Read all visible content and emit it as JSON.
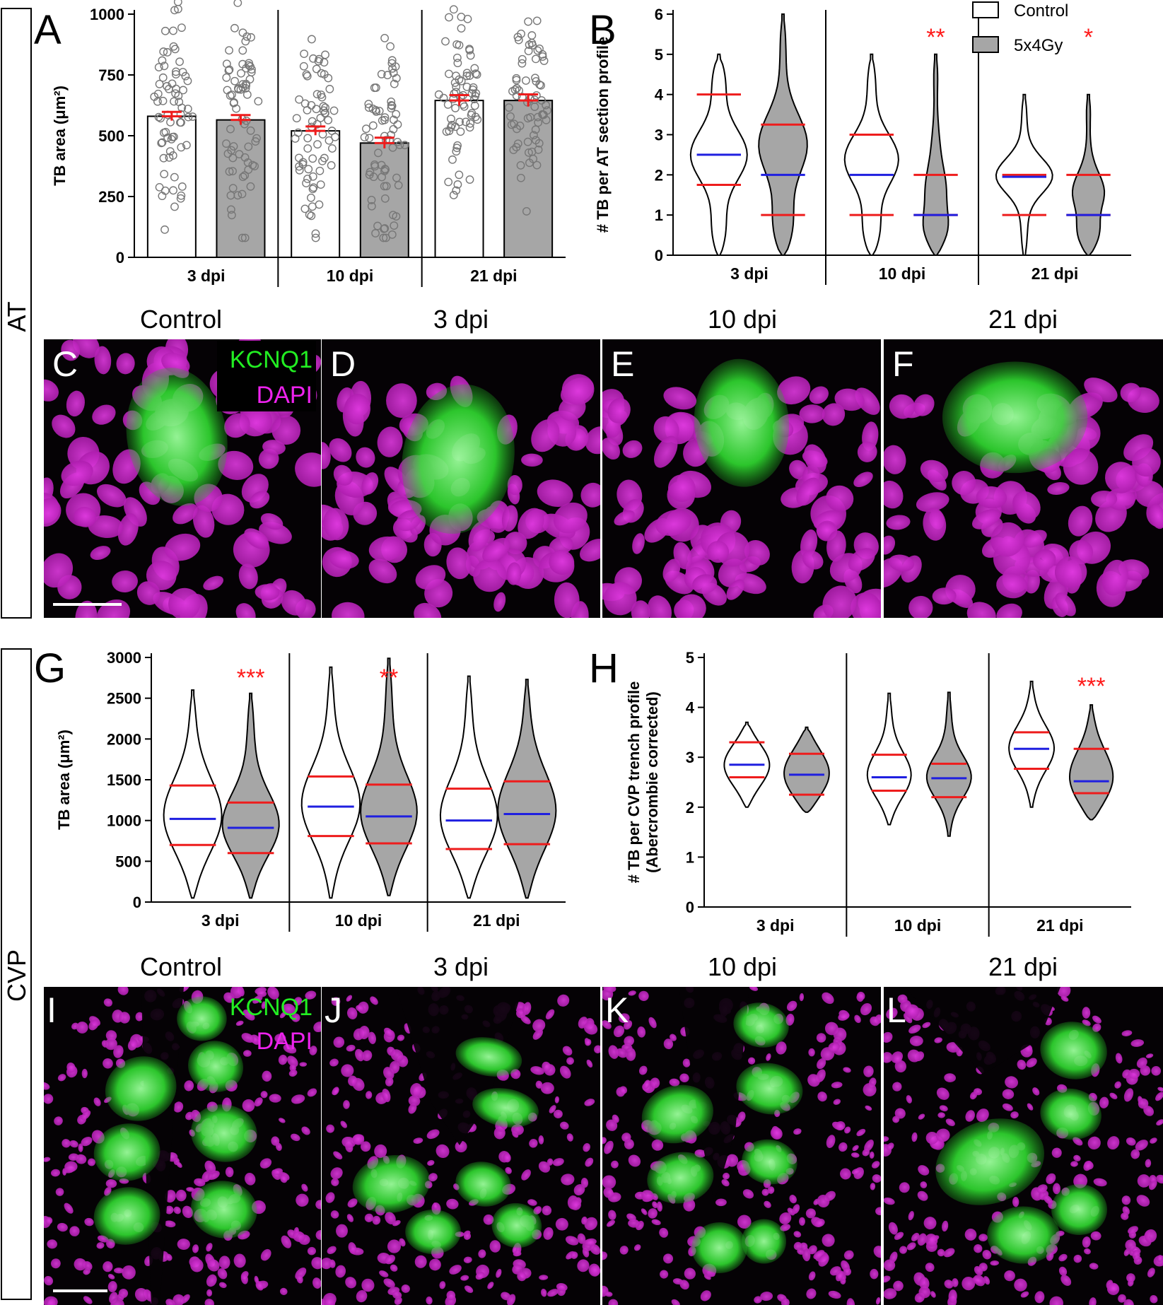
{
  "side_labels": {
    "top": "AT",
    "bottom": "CVP"
  },
  "colors": {
    "control": "#ffffff",
    "irradiated": "#a6a6a6",
    "median": "#1f1fe0",
    "quartile": "#ee1c1c",
    "sig": "#ff1a1a",
    "kcnq1": "#22ee22",
    "dapi": "#ee22ee"
  },
  "legend": {
    "control": "Control",
    "irradiated": "5x4Gy"
  },
  "groups": [
    "3 dpi",
    "10 dpi",
    "21 dpi"
  ],
  "micro_titles": [
    "Control",
    "3 dpi",
    "10 dpi",
    "21 dpi"
  ],
  "micro_at": {
    "letters": [
      "C",
      "D",
      "E",
      "F"
    ],
    "stain1": "KCNQ1",
    "stain2": "DAPI"
  },
  "micro_cvp": {
    "letters": [
      "I",
      "J",
      "K",
      "L"
    ],
    "stain1": "KCNQ1",
    "stain2": "DAPI"
  },
  "chart_data": [
    {
      "panel": "A",
      "type": "bar",
      "ylabel": "TB area (μm²)",
      "ylim": [
        0,
        1000
      ],
      "yticks": [
        0,
        250,
        500,
        750,
        1000
      ],
      "categories": [
        "3 dpi",
        "10 dpi",
        "21 dpi"
      ],
      "series": [
        {
          "name": "Control",
          "values": [
            580,
            520,
            645
          ],
          "sem": [
            18,
            18,
            22
          ]
        },
        {
          "name": "5x4Gy",
          "values": [
            565,
            470,
            645
          ],
          "sem": [
            20,
            22,
            25
          ]
        }
      ]
    },
    {
      "panel": "B",
      "type": "violin",
      "ylabel": "# TB per AT section profile",
      "ylim": [
        0,
        6
      ],
      "yticks": [
        0,
        1,
        2,
        3,
        4,
        5,
        6
      ],
      "categories": [
        "3 dpi",
        "10 dpi",
        "21 dpi"
      ],
      "series": [
        {
          "name": "Control",
          "min": [
            0,
            0,
            0
          ],
          "max": [
            5,
            5,
            4
          ],
          "median": [
            2.5,
            2,
            1.95
          ],
          "q1": [
            1.75,
            1,
            1
          ],
          "q3": [
            4,
            3,
            2
          ]
        },
        {
          "name": "5x4Gy",
          "min": [
            0,
            0,
            0
          ],
          "max": [
            6,
            5,
            4
          ],
          "median": [
            2,
            1,
            1
          ],
          "q1": [
            1,
            1,
            1
          ],
          "q3": [
            3.25,
            2,
            2
          ]
        }
      ],
      "significance": [
        "",
        "**",
        "*"
      ]
    },
    {
      "panel": "G",
      "type": "violin",
      "ylabel": "TB area (μm²)",
      "ylim": [
        0,
        3000
      ],
      "yticks": [
        0,
        500,
        1000,
        1500,
        2000,
        2500,
        3000
      ],
      "categories": [
        "3 dpi",
        "10 dpi",
        "21 dpi"
      ],
      "series": [
        {
          "name": "Control",
          "min": [
            50,
            50,
            50
          ],
          "max": [
            2600,
            2880,
            2770
          ],
          "median": [
            1020,
            1170,
            1000
          ],
          "q1": [
            700,
            810,
            650
          ],
          "q3": [
            1430,
            1540,
            1390
          ]
        },
        {
          "name": "5x4Gy",
          "min": [
            50,
            80,
            50
          ],
          "max": [
            2560,
            2990,
            2730
          ],
          "median": [
            910,
            1050,
            1080
          ],
          "q1": [
            600,
            720,
            710
          ],
          "q3": [
            1220,
            1440,
            1480
          ]
        }
      ],
      "significance": [
        "***",
        "**",
        ""
      ]
    },
    {
      "panel": "H",
      "type": "violin",
      "ylabel": "# TB per CVP trench profile (Abercrombie corrected)",
      "ylim": [
        0,
        5
      ],
      "yticks": [
        0,
        1,
        2,
        3,
        4,
        5
      ],
      "categories": [
        "3 dpi",
        "10 dpi",
        "21 dpi"
      ],
      "series": [
        {
          "name": "Control",
          "min": [
            2.0,
            1.65,
            2.0
          ],
          "max": [
            3.7,
            4.28,
            4.52
          ],
          "median": [
            2.85,
            2.6,
            3.17
          ],
          "q1": [
            2.6,
            2.33,
            2.77
          ],
          "q3": [
            3.3,
            3.05,
            3.5
          ]
        },
        {
          "name": "5x4Gy",
          "min": [
            1.9,
            1.42,
            1.75
          ],
          "max": [
            3.6,
            4.3,
            4.05
          ],
          "median": [
            2.65,
            2.58,
            2.52
          ],
          "q1": [
            2.25,
            2.2,
            2.28
          ],
          "q3": [
            3.07,
            2.87,
            3.17
          ]
        }
      ],
      "significance": [
        "",
        "",
        "***"
      ]
    }
  ]
}
